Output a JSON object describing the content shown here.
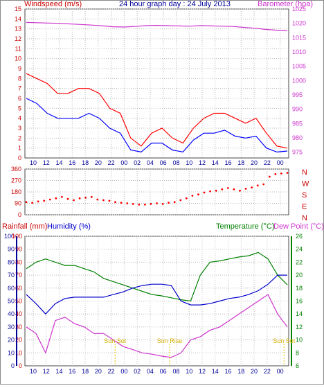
{
  "chart_data": [
    {
      "type": "line",
      "title": "24 hour graph day : 24 July 2013",
      "left_axis_label": "Windspeed (m/s)",
      "right_axis_label": "Barometer (hpa)",
      "x_ticks": [
        "10",
        "12",
        "14",
        "16",
        "18",
        "20",
        "22",
        "00",
        "02",
        "04",
        "06",
        "08",
        "10",
        "12",
        "14",
        "16",
        "18",
        "20",
        "22",
        "00"
      ],
      "left_ticks": [
        "0",
        "1",
        "2",
        "3",
        "4",
        "5",
        "6",
        "7",
        "8",
        "9",
        "10",
        "11",
        "12",
        "13",
        "14",
        "15"
      ],
      "right_ticks": [
        "975",
        "980",
        "985",
        "990",
        "995",
        "1000",
        "1005",
        "1010",
        "1015",
        "1020",
        "1025"
      ],
      "ylim_left": [
        0,
        15
      ],
      "ylim_right": [
        973,
        1025
      ],
      "grid": true,
      "series": [
        {
          "key": "barometer",
          "axis": "right",
          "color": "#cc33cc",
          "values": [
            1020.3,
            1020.2,
            1020.1,
            1020,
            1019.8,
            1019.6,
            1019.4,
            1019.1,
            1018.8,
            1018.7,
            1018.9,
            1019.2,
            1019.3,
            1019.2,
            1019.1,
            1019,
            1019.2,
            1019.1,
            1019,
            1018.9,
            1018.6,
            1018.3,
            1017.9,
            1017.6,
            1017.4
          ]
        },
        {
          "key": "gust",
          "axis": "left",
          "color": "#ff0000",
          "values": [
            8.5,
            8,
            7.5,
            6.5,
            6.5,
            7,
            7,
            6.5,
            5,
            4.5,
            2,
            1.2,
            2.5,
            3,
            2,
            1.5,
            3,
            4,
            4.5,
            4.5,
            4,
            3.5,
            4,
            2.5,
            1.2,
            1
          ]
        },
        {
          "key": "windspeed",
          "axis": "left",
          "color": "#0000ff",
          "values": [
            6,
            5.5,
            4.5,
            4,
            4,
            4,
            4.5,
            4,
            3,
            2.5,
            0.8,
            0.6,
            1.5,
            1.5,
            0.8,
            0.6,
            1.8,
            2.5,
            2.5,
            2.8,
            2.2,
            2,
            2.2,
            1,
            0.6,
            0.7
          ]
        }
      ]
    },
    {
      "type": "scatter",
      "right_axis_label": [
        "N",
        "W",
        "S",
        "E",
        "N"
      ],
      "left_ticks": [
        "0",
        "90",
        "180",
        "270",
        "360"
      ],
      "ylim": [
        0,
        360
      ],
      "x_ticks": [
        "10",
        "12",
        "14",
        "16",
        "18",
        "20",
        "22",
        "00",
        "02",
        "04",
        "06",
        "08",
        "10",
        "12",
        "14",
        "16",
        "18",
        "20",
        "22",
        "00"
      ],
      "color": "#ff0000",
      "values": [
        100,
        95,
        105,
        110,
        120,
        130,
        140,
        125,
        115,
        130,
        135,
        140,
        120,
        115,
        110,
        100,
        95,
        90,
        85,
        80,
        80,
        85,
        90,
        85,
        95,
        100,
        115,
        130,
        150,
        160,
        175,
        185,
        190,
        200,
        210,
        200,
        190,
        205,
        215,
        230,
        240,
        300,
        320,
        325,
        330
      ]
    },
    {
      "type": "line",
      "left_axis_label": "Rainfall (mm)",
      "humidity_label": "Humidity (%)",
      "temperature_label": "Temperature (°C)",
      "dewpoint_label": "Dew Point (°C)",
      "rainfall_ticks": [
        "0",
        "10",
        "20",
        "30",
        "40",
        "50",
        "60",
        "70",
        "80",
        "90",
        "100"
      ],
      "humidity_ticks": [
        "0",
        "10",
        "20",
        "30",
        "40",
        "50",
        "60",
        "70",
        "80",
        "90",
        "100"
      ],
      "temp_ticks": [
        "6",
        "8",
        "10",
        "12",
        "14",
        "16",
        "18",
        "20",
        "22",
        "24",
        "26"
      ],
      "x_ticks": [
        "10",
        "12",
        "14",
        "16",
        "18",
        "20",
        "22",
        "00",
        "02",
        "04",
        "06",
        "08",
        "10",
        "12",
        "14",
        "16",
        "18",
        "20",
        "22",
        "00"
      ],
      "sunset_label": "Sun Set",
      "sunrise_label": "Sun Rise",
      "sun_markers": [
        "Sun Set",
        "Sun Rise",
        "Sun Set"
      ],
      "ylim_temp": [
        6,
        26
      ],
      "series": [
        {
          "key": "temperature",
          "color": "#008000",
          "values": [
            21,
            22,
            22.5,
            22,
            21.5,
            21.5,
            21,
            20.5,
            19.5,
            19,
            18.5,
            18,
            17.5,
            17,
            16.8,
            16.5,
            16.2,
            16,
            20,
            22,
            22.2,
            22.5,
            22.8,
            23,
            23.5,
            22.5,
            20,
            18.5
          ]
        },
        {
          "key": "humidity",
          "color": "#0000cc",
          "scale": "pct",
          "values": [
            55,
            48,
            40,
            48,
            52,
            53,
            53,
            53,
            53,
            55,
            57,
            60,
            62,
            63,
            63,
            62,
            50,
            47,
            47,
            48,
            50,
            52,
            53,
            55,
            58,
            63,
            70,
            70
          ]
        },
        {
          "key": "dewpoint",
          "color": "#cc33cc",
          "values": [
            12,
            11,
            8,
            13,
            13.5,
            12.5,
            12,
            11,
            11,
            10,
            9,
            8.5,
            8,
            7.8,
            7.5,
            7.3,
            8,
            10,
            10.5,
            11.5,
            12,
            13,
            14,
            15,
            16,
            17,
            14,
            12
          ]
        }
      ]
    }
  ]
}
